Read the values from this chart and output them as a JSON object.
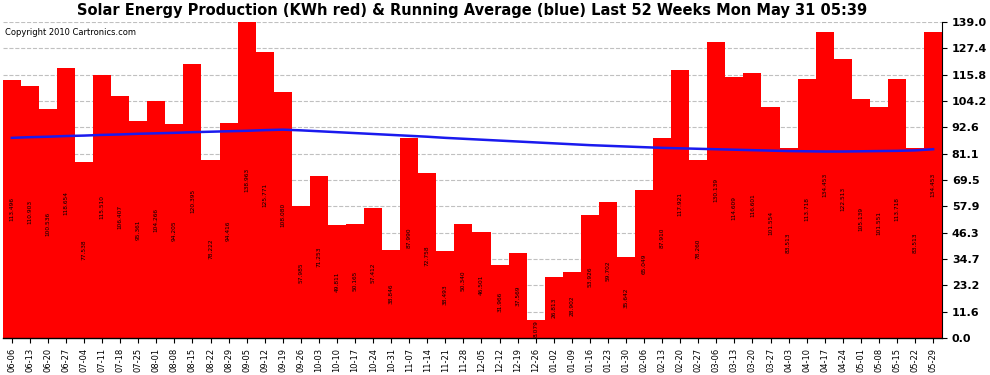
{
  "title": "Solar Energy Production (KWh red) & Running Average (blue) Last 52 Weeks Mon May 31 05:39",
  "copyright": "Copyright 2010 Cartronics.com",
  "bar_color": "#FF0000",
  "avg_line_color": "#1a1aee",
  "background_color": "#FFFFFF",
  "plot_bg_color": "#FFFFFF",
  "ylim": [
    0,
    139.0
  ],
  "yticks": [
    0.0,
    11.6,
    23.2,
    34.7,
    46.3,
    57.9,
    69.5,
    81.1,
    92.6,
    104.2,
    115.8,
    127.4,
    139.0
  ],
  "categories": [
    "06-06",
    "06-13",
    "06-20",
    "06-27",
    "07-04",
    "07-11",
    "07-18",
    "07-25",
    "08-01",
    "08-08",
    "08-15",
    "08-22",
    "08-29",
    "09-05",
    "09-12",
    "09-19",
    "09-26",
    "10-03",
    "10-10",
    "10-17",
    "10-24",
    "10-31",
    "11-07",
    "11-14",
    "11-21",
    "11-28",
    "12-05",
    "12-12",
    "12-19",
    "12-26",
    "01-02",
    "01-09",
    "01-16",
    "01-23",
    "01-30",
    "02-06",
    "02-13",
    "02-20",
    "02-27",
    "03-06",
    "03-13",
    "03-20",
    "03-27",
    "04-03",
    "04-10",
    "04-17",
    "04-24",
    "05-01",
    "05-08",
    "05-15",
    "05-22",
    "05-29"
  ],
  "values": [
    113.496,
    110.903,
    100.536,
    118.654,
    77.538,
    115.51,
    106.407,
    95.361,
    104.266,
    94.205,
    120.395,
    78.222,
    94.416,
    138.963,
    125.771,
    108.08,
    57.985,
    71.253,
    49.811,
    50.165,
    57.412,
    38.846,
    87.99,
    72.758,
    38.493,
    50.34,
    46.501,
    31.966,
    37.569,
    8.079,
    26.813,
    28.902,
    53.926,
    59.702,
    35.642,
    65.049,
    87.91,
    117.921,
    78.26,
    130.139,
    114.609,
    116.601,
    101.554,
    83.513,
    113.718,
    134.453,
    122.513,
    105.139,
    101.551,
    113.718,
    83.513,
    134.453
  ],
  "running_avg": [
    88.0,
    88.3,
    88.5,
    88.8,
    89.0,
    89.3,
    89.5,
    89.8,
    90.0,
    90.2,
    90.5,
    90.7,
    90.9,
    91.1,
    91.4,
    91.6,
    91.3,
    90.9,
    90.5,
    90.1,
    89.7,
    89.3,
    88.9,
    88.5,
    88.0,
    87.6,
    87.2,
    86.8,
    86.4,
    86.0,
    85.6,
    85.2,
    84.8,
    84.5,
    84.2,
    83.9,
    83.6,
    83.4,
    83.2,
    83.0,
    82.8,
    82.6,
    82.4,
    82.2,
    82.1,
    82.0,
    82.0,
    82.1,
    82.2,
    82.3,
    82.5,
    83.0
  ]
}
